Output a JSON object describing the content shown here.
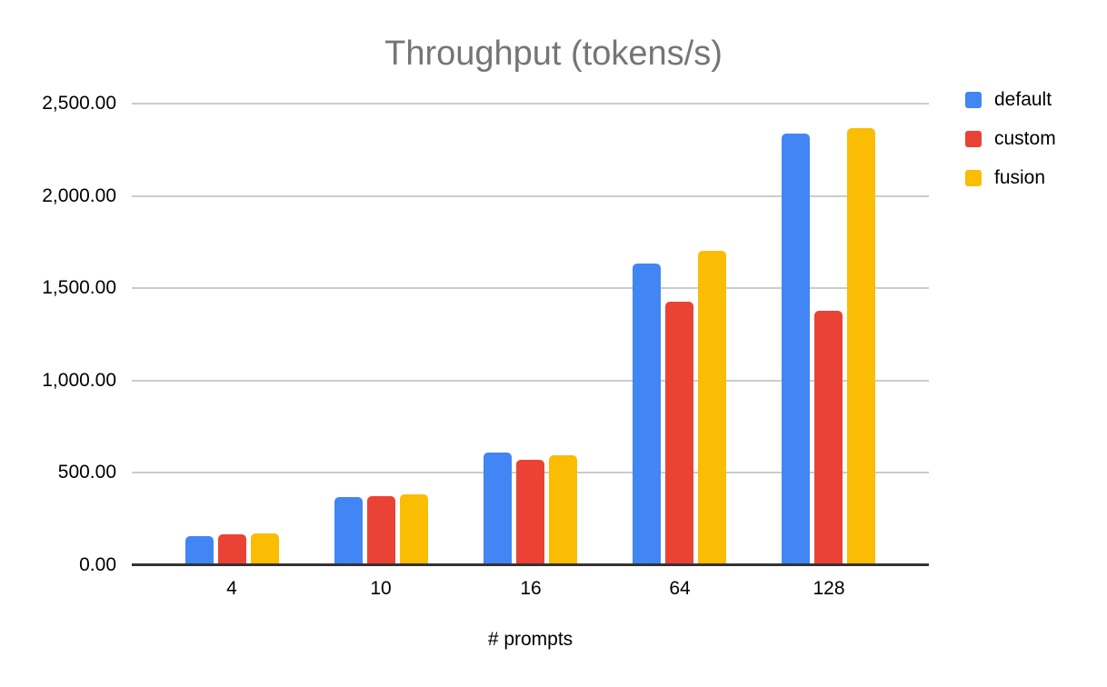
{
  "chart_data": {
    "type": "bar",
    "title": "Throughput (tokens/s)",
    "xlabel": "# prompts",
    "ylabel": "",
    "categories": [
      "4",
      "10",
      "16",
      "64",
      "128"
    ],
    "series": [
      {
        "name": "default",
        "color": "#4285F4",
        "values": [
          159,
          371,
          609,
          1634,
          2336
        ]
      },
      {
        "name": "custom",
        "color": "#EA4335",
        "values": [
          165,
          374,
          572,
          1427,
          1378
        ]
      },
      {
        "name": "fusion",
        "color": "#FBBC04",
        "values": [
          173,
          384,
          597,
          1703,
          2369
        ]
      }
    ],
    "y_ticks": [
      {
        "value": 0,
        "label": "0.00"
      },
      {
        "value": 500,
        "label": "500.00"
      },
      {
        "value": 1000,
        "label": "1,000.00"
      },
      {
        "value": 1500,
        "label": "1,500.00"
      },
      {
        "value": 2000,
        "label": "2,000.00"
      },
      {
        "value": 2500,
        "label": "2,500.00"
      }
    ],
    "ylim": [
      0,
      2500
    ],
    "grid": true,
    "legend_position": "right"
  },
  "colors": {
    "title": "#757575",
    "gridline": "#cccccc",
    "axis_line": "#333333",
    "tick_label": "#000000",
    "background": "#ffffff"
  }
}
